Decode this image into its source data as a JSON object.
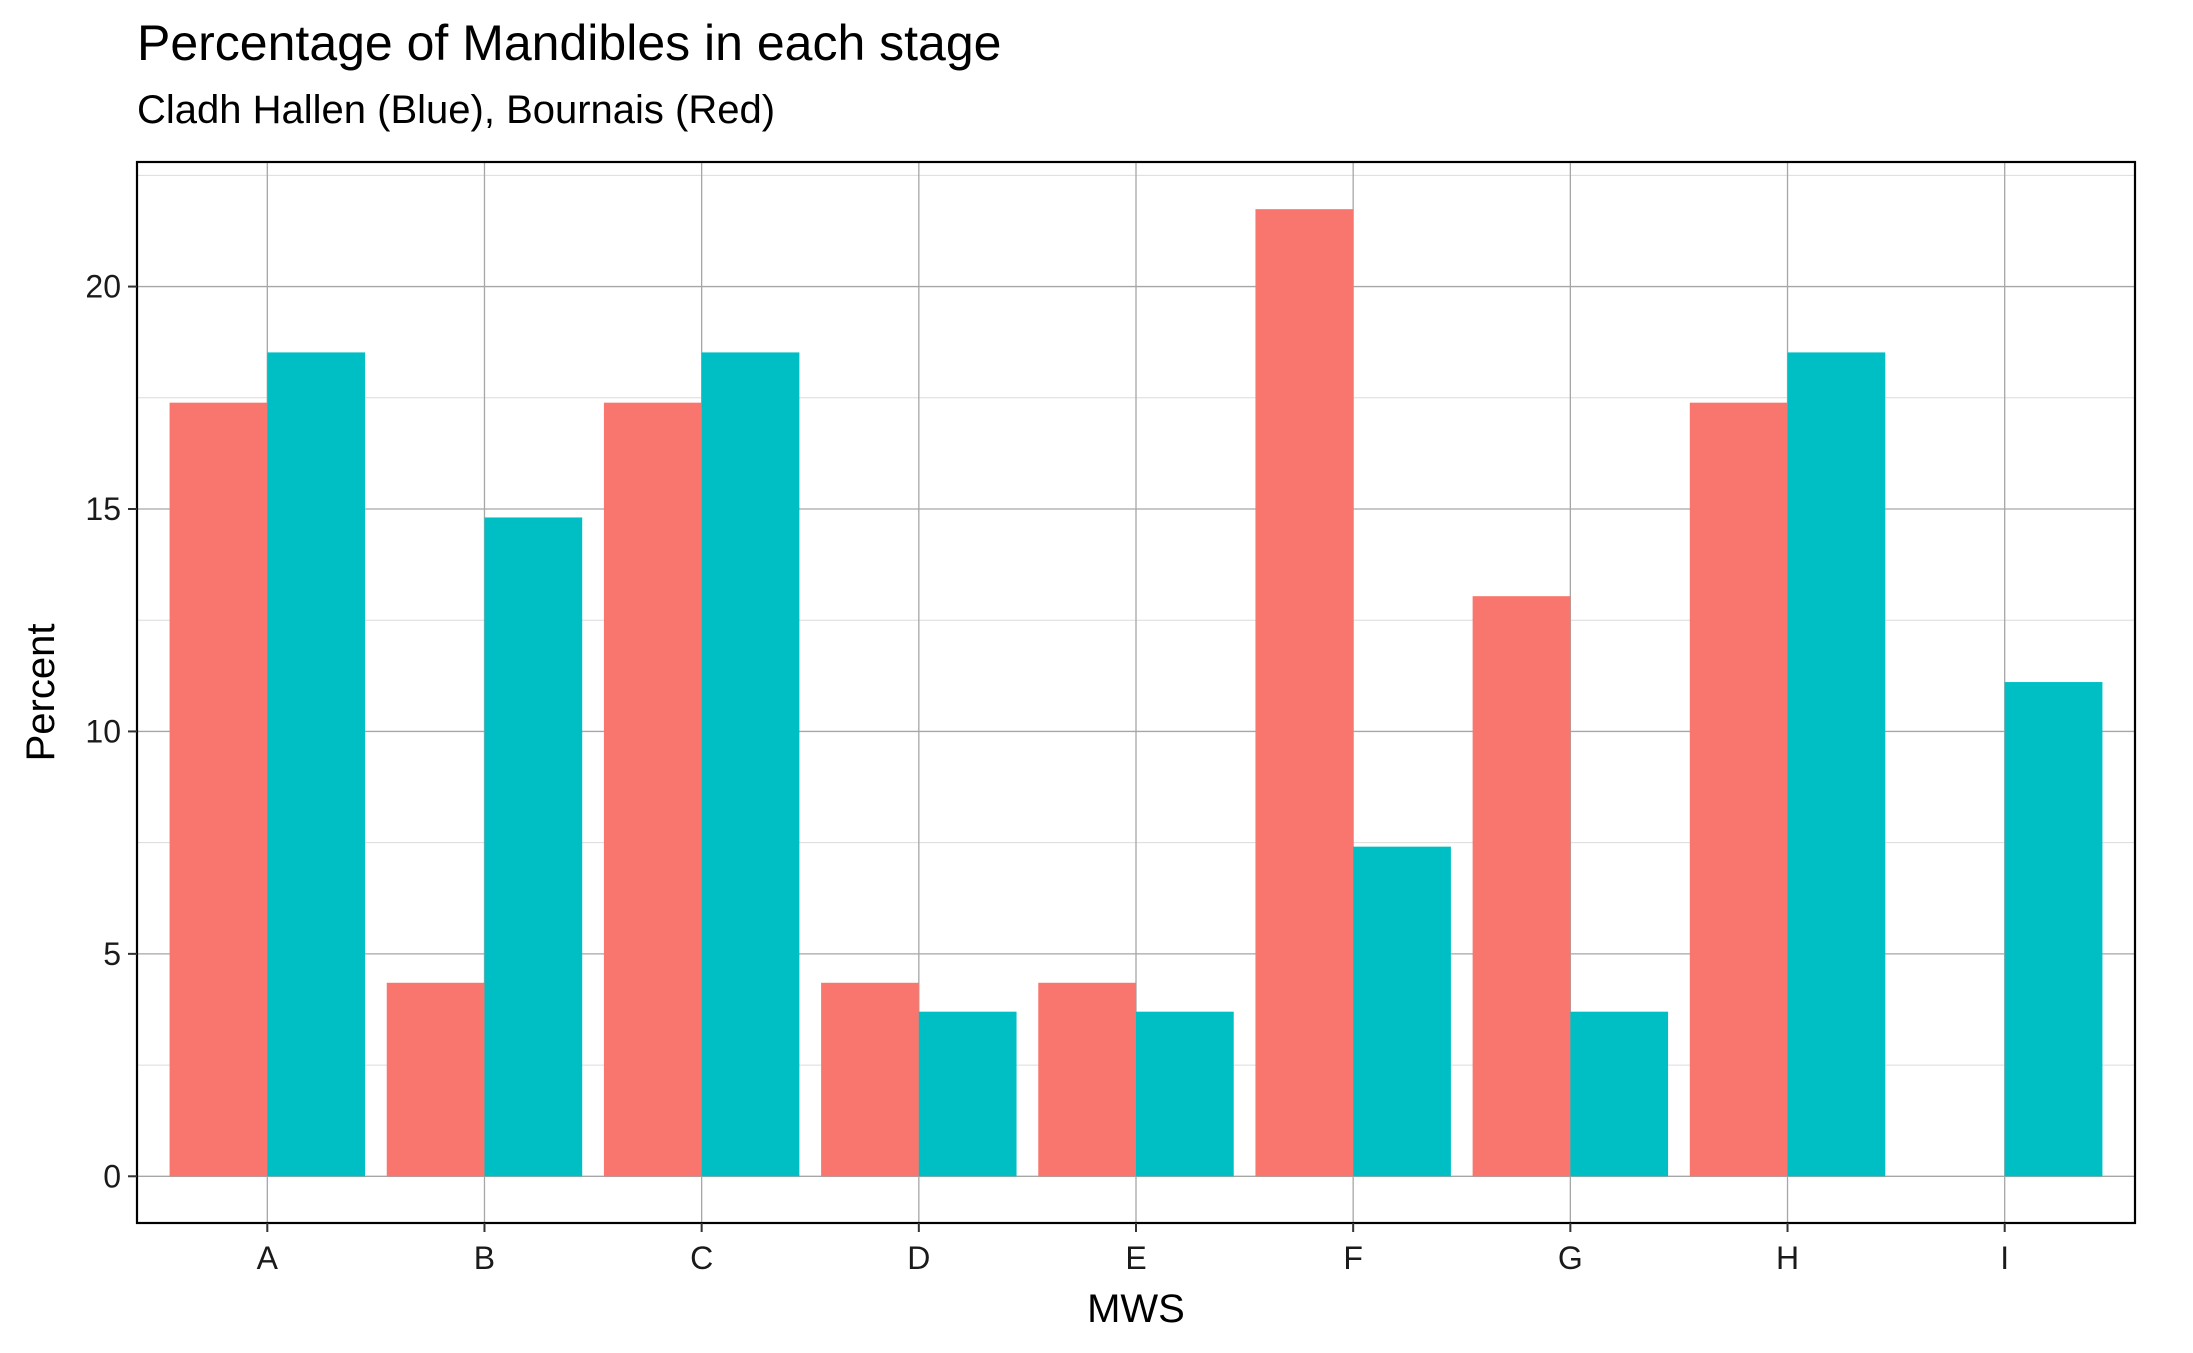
{
  "chart_data": {
    "type": "bar",
    "title": "Percentage of Mandibles in each stage",
    "subtitle": "Cladh Hallen (Blue), Bournais (Red)",
    "xlabel": "MWS",
    "ylabel": "Percent",
    "categories": [
      "A",
      "B",
      "C",
      "D",
      "E",
      "F",
      "G",
      "H",
      "I"
    ],
    "series": [
      {
        "name": "Bournais",
        "color": "#F8766D",
        "values": [
          17.39,
          4.35,
          17.39,
          4.35,
          4.35,
          21.74,
          13.04,
          17.39,
          0
        ]
      },
      {
        "name": "Cladh Hallen",
        "color": "#00BFC4",
        "values": [
          18.52,
          14.81,
          18.52,
          3.7,
          3.7,
          7.41,
          3.7,
          18.52,
          11.11
        ]
      }
    ],
    "ylim": [
      -1.05,
      22.8
    ],
    "yticks": [
      0,
      5,
      10,
      15,
      20
    ],
    "ytick_labels": [
      "0",
      "5",
      "10",
      "15",
      "20"
    ],
    "grid": true,
    "legend": "none"
  }
}
